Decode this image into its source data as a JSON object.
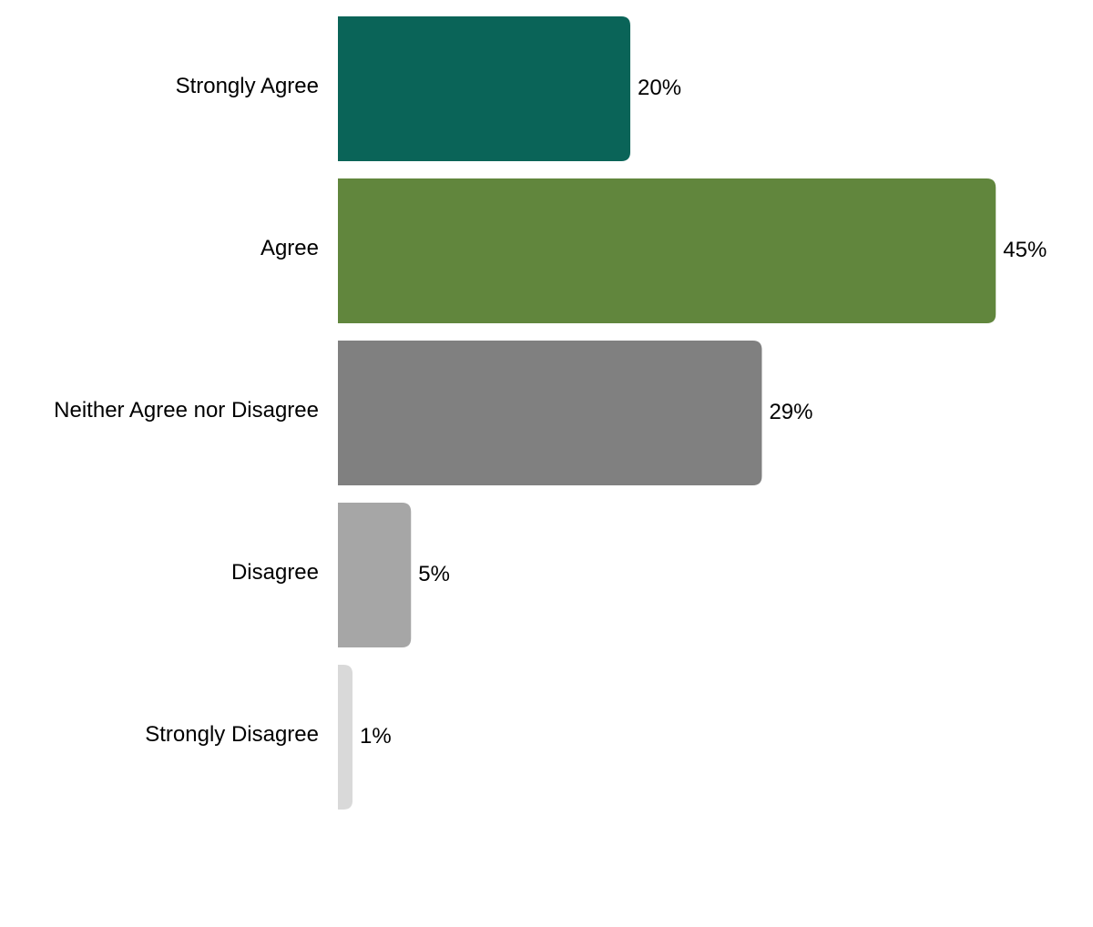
{
  "chart_data": {
    "type": "bar",
    "orientation": "horizontal",
    "categories": [
      "Strongly Agree",
      "Agree",
      "Neither Agree nor Disagree",
      "Disagree",
      "Strongly Disagree"
    ],
    "values": [
      20,
      45,
      29,
      5,
      1
    ],
    "value_labels": [
      "20%",
      "45%",
      "29%",
      "5%",
      "1%"
    ],
    "colors": [
      "#0a6458",
      "#61863d",
      "#808080",
      "#a6a6a6",
      "#d9d9d9"
    ]
  }
}
